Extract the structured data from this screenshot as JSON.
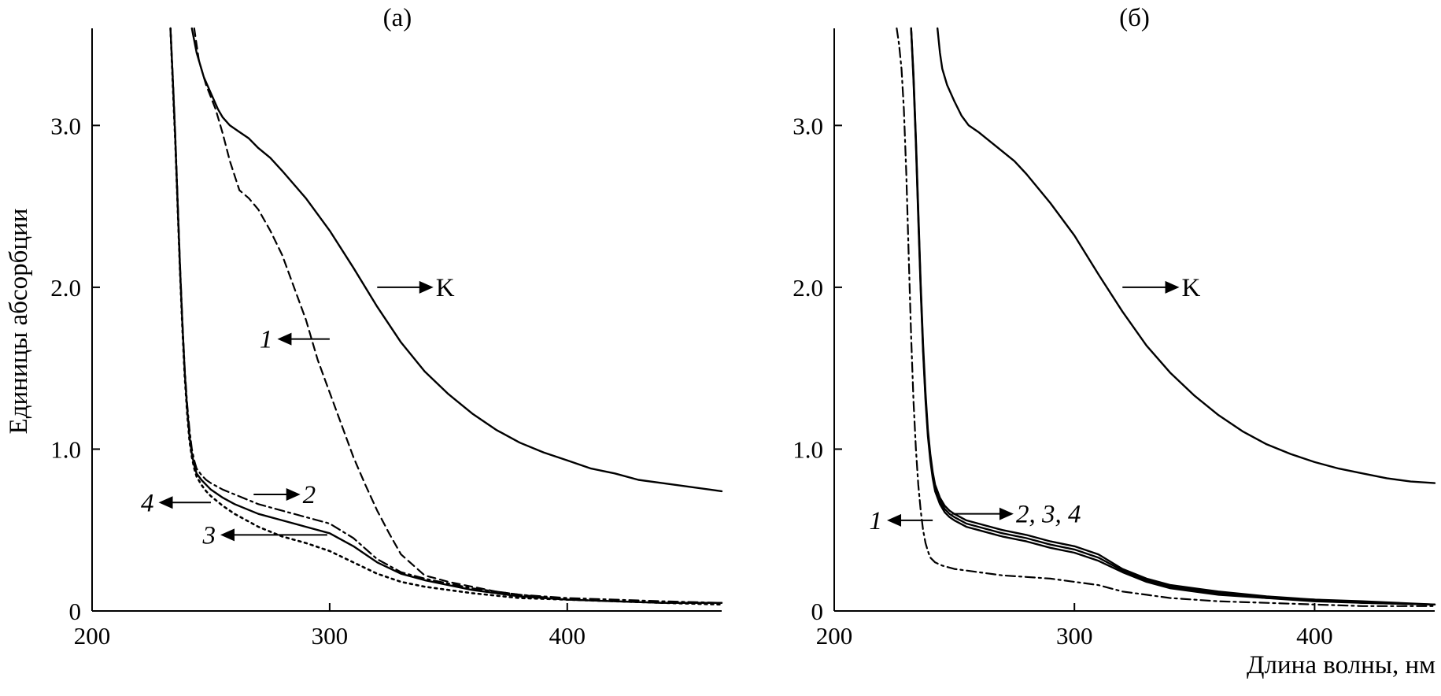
{
  "figure": {
    "ylabel": "Единицы абсорбции",
    "xlabel": "Длина волны, нм"
  },
  "chart_data": [
    {
      "type": "line",
      "title": "(а)",
      "xlim": [
        200,
        465
      ],
      "ylim": [
        0,
        3.6
      ],
      "xticks": [
        {
          "v": 200,
          "label": "200"
        },
        {
          "v": 300,
          "label": "300"
        },
        {
          "v": 400,
          "label": "400"
        }
      ],
      "yticks": [
        {
          "v": 0,
          "label": "0"
        },
        {
          "v": 1.0,
          "label": "1.0"
        },
        {
          "v": 2.0,
          "label": "2.0"
        },
        {
          "v": 3.0,
          "label": "3.0"
        }
      ],
      "grid": false,
      "series": [
        {
          "name": "K",
          "style": "solid",
          "x": [
            242,
            244,
            247,
            250,
            253,
            255,
            258,
            262,
            266,
            270,
            275,
            280,
            290,
            300,
            310,
            320,
            330,
            340,
            350,
            360,
            370,
            380,
            390,
            400,
            410,
            420,
            430,
            440,
            450,
            460,
            465
          ],
          "y": [
            3.6,
            3.45,
            3.3,
            3.2,
            3.1,
            3.05,
            3.0,
            2.96,
            2.92,
            2.86,
            2.8,
            2.72,
            2.55,
            2.35,
            2.12,
            1.88,
            1.66,
            1.48,
            1.34,
            1.22,
            1.12,
            1.04,
            0.98,
            0.93,
            0.88,
            0.85,
            0.81,
            0.79,
            0.77,
            0.75,
            0.74
          ]
        },
        {
          "name": "1",
          "style": "dashed",
          "x": [
            243,
            245,
            248,
            252,
            255,
            258,
            262,
            266,
            270,
            275,
            280,
            285,
            290,
            295,
            300,
            305,
            310,
            315,
            320,
            325,
            330,
            340,
            350,
            360,
            370,
            380,
            400,
            420,
            440,
            465
          ],
          "y": [
            3.6,
            3.4,
            3.25,
            3.1,
            2.95,
            2.78,
            2.6,
            2.55,
            2.48,
            2.35,
            2.2,
            2.0,
            1.8,
            1.55,
            1.35,
            1.15,
            0.95,
            0.78,
            0.62,
            0.48,
            0.35,
            0.22,
            0.18,
            0.15,
            0.12,
            0.1,
            0.07,
            0.06,
            0.05,
            0.05
          ]
        },
        {
          "name": "2",
          "style": "dashdot",
          "x": [
            233,
            234,
            235,
            236,
            237,
            238,
            239,
            240,
            241,
            242,
            243,
            244,
            246,
            248,
            250,
            255,
            260,
            270,
            280,
            290,
            300,
            310,
            320,
            330,
            340,
            360,
            380,
            400,
            420,
            440,
            465
          ],
          "y": [
            3.6,
            3.3,
            2.95,
            2.55,
            2.15,
            1.8,
            1.5,
            1.28,
            1.12,
            1.0,
            0.93,
            0.88,
            0.84,
            0.81,
            0.79,
            0.75,
            0.72,
            0.66,
            0.62,
            0.58,
            0.54,
            0.45,
            0.32,
            0.24,
            0.2,
            0.14,
            0.1,
            0.08,
            0.07,
            0.06,
            0.05
          ]
        },
        {
          "name": "3",
          "style": "dotted",
          "x": [
            233,
            234,
            235,
            236,
            237,
            238,
            239,
            240,
            241,
            242,
            243,
            244,
            246,
            248,
            250,
            255,
            260,
            270,
            280,
            290,
            300,
            310,
            320,
            330,
            340,
            360,
            380,
            400,
            420,
            440,
            465
          ],
          "y": [
            3.6,
            3.25,
            2.9,
            2.5,
            2.1,
            1.75,
            1.45,
            1.22,
            1.05,
            0.95,
            0.88,
            0.83,
            0.78,
            0.74,
            0.71,
            0.65,
            0.6,
            0.52,
            0.46,
            0.42,
            0.37,
            0.3,
            0.23,
            0.18,
            0.15,
            0.11,
            0.08,
            0.07,
            0.06,
            0.05,
            0.04
          ]
        },
        {
          "name": "4",
          "style": "solid",
          "x": [
            233,
            234,
            235,
            236,
            237,
            238,
            239,
            240,
            241,
            242,
            243,
            244,
            246,
            248,
            250,
            255,
            260,
            270,
            280,
            290,
            300,
            310,
            320,
            330,
            340,
            360,
            380,
            400,
            420,
            440,
            465
          ],
          "y": [
            3.6,
            3.28,
            2.92,
            2.52,
            2.12,
            1.78,
            1.48,
            1.25,
            1.08,
            0.97,
            0.9,
            0.85,
            0.81,
            0.78,
            0.75,
            0.7,
            0.66,
            0.6,
            0.56,
            0.52,
            0.48,
            0.4,
            0.3,
            0.23,
            0.19,
            0.13,
            0.09,
            0.07,
            0.06,
            0.05,
            0.05
          ]
        }
      ],
      "annotations": [
        {
          "series": "K",
          "text": "K",
          "italic": false,
          "direction": "right",
          "at_x": 320,
          "at_y": 2.0,
          "label_x": 345,
          "label_y": 2.0
        },
        {
          "series": "1",
          "text": "1",
          "italic": true,
          "direction": "left",
          "at_x": 300,
          "at_y": 1.68,
          "label_x": 276,
          "label_y": 1.68
        },
        {
          "series": "2",
          "text": "2",
          "italic": true,
          "direction": "right",
          "at_x": 268,
          "at_y": 0.72,
          "label_x": 289,
          "label_y": 0.72
        },
        {
          "series": "3",
          "text": "3",
          "italic": true,
          "direction": "left",
          "at_x": 299,
          "at_y": 0.47,
          "label_x": 252,
          "label_y": 0.47
        },
        {
          "series": "4",
          "text": "4",
          "italic": true,
          "direction": "left",
          "at_x": 250,
          "at_y": 0.67,
          "label_x": 226,
          "label_y": 0.67
        }
      ]
    },
    {
      "type": "line",
      "title": "(б)",
      "xlim": [
        200,
        450
      ],
      "ylim": [
        0,
        3.6
      ],
      "xticks": [
        {
          "v": 200,
          "label": "200"
        },
        {
          "v": 300,
          "label": "300"
        },
        {
          "v": 400,
          "label": "400"
        }
      ],
      "yticks": [
        {
          "v": 0,
          "label": "0"
        },
        {
          "v": 1.0,
          "label": "1.0"
        },
        {
          "v": 2.0,
          "label": "2.0"
        },
        {
          "v": 3.0,
          "label": "3.0"
        }
      ],
      "grid": false,
      "series": [
        {
          "name": "K",
          "style": "solid",
          "x": [
            243,
            244,
            245,
            247,
            250,
            253,
            256,
            260,
            265,
            270,
            275,
            280,
            290,
            300,
            310,
            320,
            330,
            340,
            350,
            360,
            370,
            380,
            390,
            400,
            410,
            420,
            430,
            440,
            450
          ],
          "y": [
            3.6,
            3.45,
            3.35,
            3.25,
            3.15,
            3.06,
            3.0,
            2.96,
            2.9,
            2.84,
            2.78,
            2.7,
            2.52,
            2.32,
            2.08,
            1.85,
            1.64,
            1.47,
            1.33,
            1.21,
            1.11,
            1.03,
            0.97,
            0.92,
            0.88,
            0.85,
            0.82,
            0.8,
            0.79
          ]
        },
        {
          "name": "1",
          "style": "dashdot",
          "x": [
            226,
            227,
            228,
            229,
            230,
            231,
            232,
            233,
            234,
            235,
            236,
            237,
            238,
            239,
            240,
            242,
            245,
            250,
            260,
            270,
            280,
            290,
            300,
            310,
            320,
            330,
            340,
            360,
            380,
            400,
            420,
            450
          ],
          "y": [
            3.6,
            3.5,
            3.35,
            3.1,
            2.7,
            2.2,
            1.7,
            1.3,
            1.0,
            0.78,
            0.62,
            0.5,
            0.42,
            0.37,
            0.33,
            0.3,
            0.28,
            0.26,
            0.24,
            0.22,
            0.21,
            0.2,
            0.18,
            0.16,
            0.12,
            0.1,
            0.08,
            0.06,
            0.05,
            0.04,
            0.03,
            0.03
          ]
        },
        {
          "name": "2",
          "style": "solid",
          "x": [
            232,
            233,
            234,
            235,
            236,
            237,
            238,
            239,
            240,
            241,
            242,
            244,
            246,
            248,
            250,
            255,
            260,
            270,
            280,
            290,
            300,
            310,
            320,
            330,
            340,
            360,
            380,
            400,
            420,
            450
          ],
          "y": [
            3.6,
            3.3,
            2.9,
            2.45,
            2.0,
            1.62,
            1.32,
            1.1,
            0.95,
            0.84,
            0.76,
            0.68,
            0.63,
            0.6,
            0.58,
            0.54,
            0.52,
            0.48,
            0.45,
            0.41,
            0.38,
            0.33,
            0.25,
            0.19,
            0.15,
            0.11,
            0.08,
            0.07,
            0.05,
            0.04
          ]
        },
        {
          "name": "3",
          "style": "solid",
          "x": [
            232,
            233,
            234,
            235,
            236,
            237,
            238,
            239,
            240,
            241,
            242,
            244,
            246,
            248,
            250,
            255,
            260,
            270,
            280,
            290,
            300,
            310,
            320,
            330,
            340,
            360,
            380,
            400,
            420,
            450
          ],
          "y": [
            3.6,
            3.28,
            2.88,
            2.42,
            1.98,
            1.6,
            1.3,
            1.08,
            0.93,
            0.82,
            0.74,
            0.66,
            0.61,
            0.58,
            0.56,
            0.52,
            0.5,
            0.46,
            0.43,
            0.39,
            0.36,
            0.31,
            0.24,
            0.18,
            0.14,
            0.1,
            0.08,
            0.06,
            0.05,
            0.04
          ]
        },
        {
          "name": "4",
          "style": "solid",
          "x": [
            232,
            233,
            234,
            235,
            236,
            237,
            238,
            239,
            240,
            241,
            242,
            244,
            246,
            248,
            250,
            255,
            260,
            270,
            280,
            290,
            300,
            310,
            320,
            330,
            340,
            360,
            380,
            400,
            420,
            450
          ],
          "y": [
            3.6,
            3.32,
            2.92,
            2.48,
            2.02,
            1.65,
            1.35,
            1.12,
            0.97,
            0.86,
            0.78,
            0.7,
            0.65,
            0.62,
            0.6,
            0.56,
            0.54,
            0.5,
            0.47,
            0.43,
            0.4,
            0.35,
            0.26,
            0.2,
            0.16,
            0.12,
            0.09,
            0.07,
            0.06,
            0.04
          ]
        }
      ],
      "annotations": [
        {
          "series": "K",
          "text": "K",
          "italic": false,
          "direction": "right",
          "at_x": 320,
          "at_y": 2.0,
          "label_x": 345,
          "label_y": 2.0
        },
        {
          "series": "1",
          "text": "1",
          "italic": true,
          "direction": "left",
          "at_x": 241,
          "at_y": 0.56,
          "label_x": 220,
          "label_y": 0.56
        },
        {
          "series": "2, 3, 4",
          "text": "2, 3, 4",
          "italic": true,
          "direction": "right",
          "at_x": 249,
          "at_y": 0.6,
          "label_x": 276,
          "label_y": 0.6
        }
      ]
    }
  ]
}
